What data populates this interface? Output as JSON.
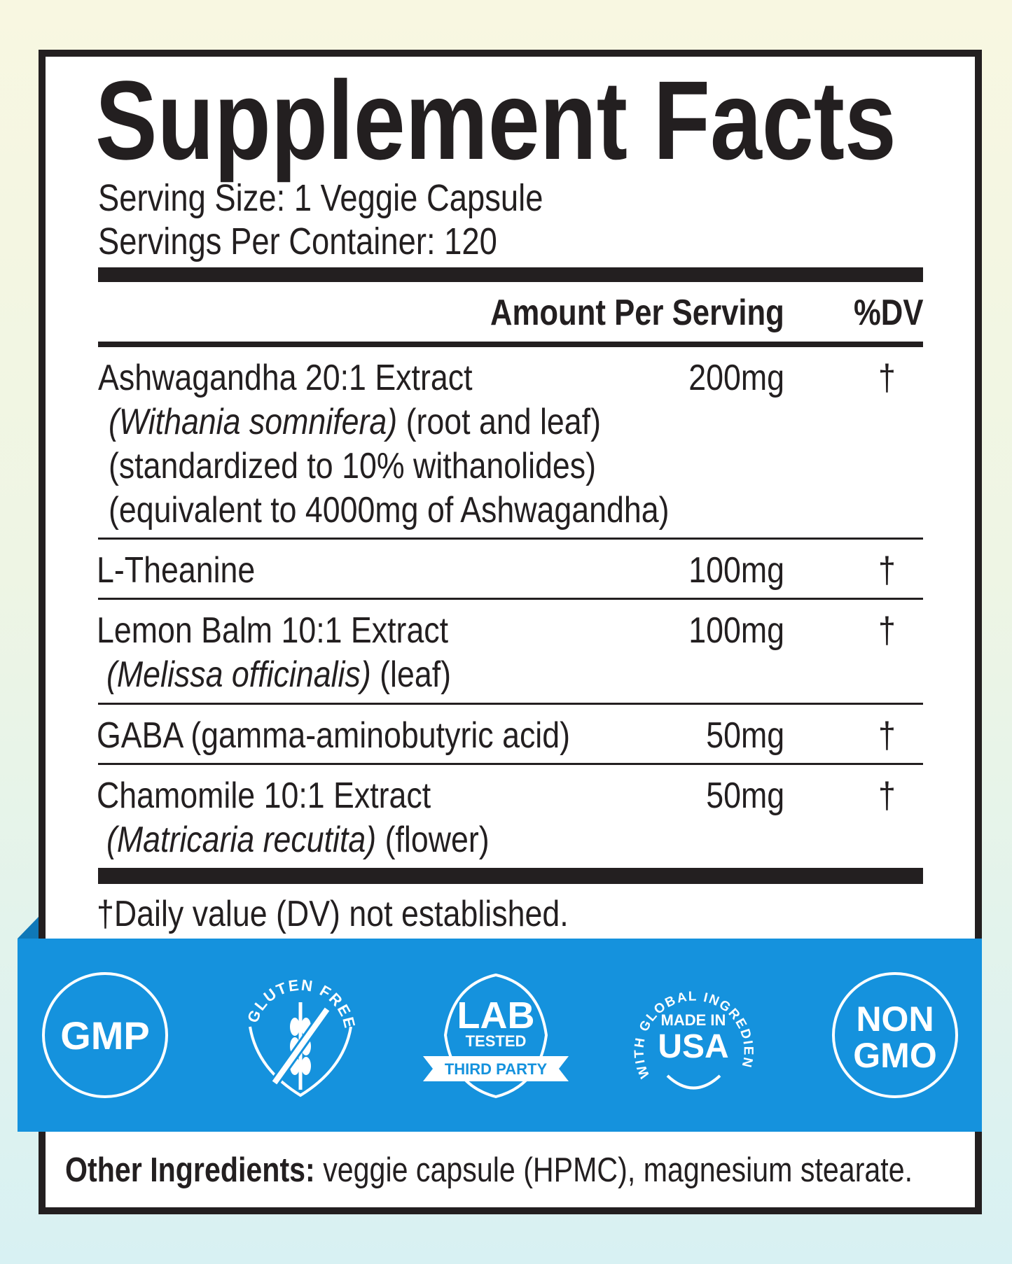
{
  "title": "Supplement Facts",
  "serving_size": "Serving Size: 1 Veggie Capsule",
  "servings_per_container": "Servings Per Container: 120",
  "header": {
    "amount": "Amount Per Serving",
    "dv": "%DV"
  },
  "rows": [
    {
      "lines": [
        "Ashwagandha 20:1 Extract"
      ],
      "latin": "(Withania somnifera)",
      "latin_rest": " (root and leaf)",
      "extra": [
        "(standardized to 10% withanolides)",
        "(equivalent to 4000mg of Ashwagandha)"
      ],
      "amount": "200mg",
      "dv": "†"
    },
    {
      "lines": [
        "L-Theanine"
      ],
      "amount": "100mg",
      "dv": "†"
    },
    {
      "lines": [
        "Lemon Balm 10:1 Extract"
      ],
      "latin": "(Melissa officinalis)",
      "latin_rest": " (leaf)",
      "amount": "100mg",
      "dv": "†"
    },
    {
      "lines": [
        "GABA (gamma-aminobutyric acid)"
      ],
      "amount": "50mg",
      "dv": "†"
    },
    {
      "lines": [
        "Chamomile 10:1 Extract"
      ],
      "latin": "(Matricaria recutita)",
      "latin_rest": " (flower)",
      "amount": "50mg",
      "dv": "†"
    }
  ],
  "footnote": "†Daily value (DV) not established.",
  "badges": {
    "gmp": "GMP",
    "gluten": "GLUTEN FREE",
    "lab": "LAB",
    "tested": "TESTED",
    "third": "THIRD PARTY",
    "global": "WITH GLOBAL INGREDIENTS",
    "made": "MADE IN",
    "usa": "USA",
    "non": "NON",
    "gmo": "GMO"
  },
  "other": {
    "label": "Other Ingredients:",
    "text": " veggie capsule (HPMC), magnesium stearate."
  },
  "colors": {
    "band": "#1592dd",
    "ink": "#231f20"
  }
}
